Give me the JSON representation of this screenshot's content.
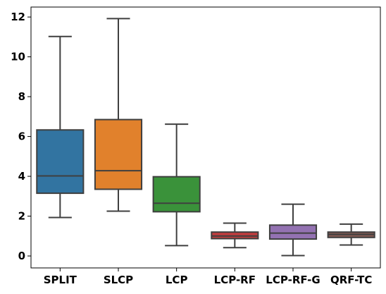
{
  "chart_data": {
    "type": "box",
    "title": "",
    "xlabel": "",
    "ylabel": "",
    "ylim": [
      -0.6,
      12.5
    ],
    "yticks": [
      0,
      2,
      4,
      6,
      8,
      10,
      12
    ],
    "grid": false,
    "categories": [
      "SPLIT",
      "SLCP",
      "LCP",
      "LCP-RF",
      "LCP-RF-G",
      "QRF-TC"
    ],
    "boxes": [
      {
        "category": "SPLIT",
        "color": "#3274a1",
        "whisker_low": 1.93,
        "q1": 3.15,
        "median": 4.02,
        "q3": 6.33,
        "whisker_high": 11.02
      },
      {
        "category": "SLCP",
        "color": "#e1812c",
        "whisker_low": 2.25,
        "q1": 3.35,
        "median": 4.28,
        "q3": 6.85,
        "whisker_high": 11.92
      },
      {
        "category": "LCP",
        "color": "#3a923a",
        "whisker_low": 0.52,
        "q1": 2.22,
        "median": 2.65,
        "q3": 3.98,
        "whisker_high": 6.62
      },
      {
        "category": "LCP-RF",
        "color": "#c03d3e",
        "whisker_low": 0.42,
        "q1": 0.87,
        "median": 1.0,
        "q3": 1.2,
        "whisker_high": 1.65
      },
      {
        "category": "LCP-RF-G",
        "color": "#9372b2",
        "whisker_low": 0.02,
        "q1": 0.85,
        "median": 1.15,
        "q3": 1.55,
        "whisker_high": 2.6
      },
      {
        "category": "QRF-TC",
        "color": "#845b53",
        "whisker_low": 0.55,
        "q1": 0.93,
        "median": 1.08,
        "q3": 1.2,
        "whisker_high": 1.6
      }
    ]
  }
}
